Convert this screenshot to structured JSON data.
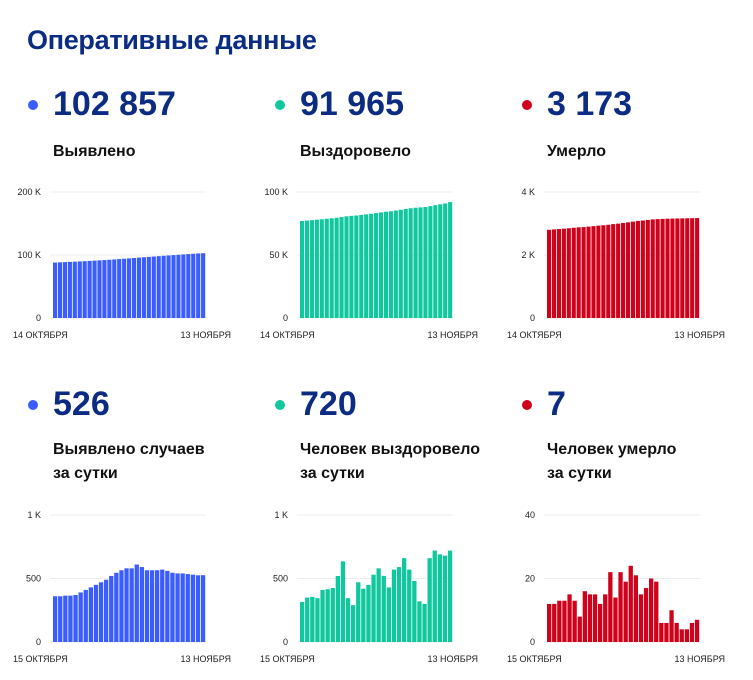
{
  "title": "Оперативные данные",
  "colors": {
    "cases": "#3b5cff",
    "recovered": "#10c79e",
    "deaths": "#d0021b"
  },
  "stats": [
    {
      "value": "102 857",
      "label1": "Выявлено",
      "label2": "",
      "color": "#3b5cff"
    },
    {
      "value": "91 965",
      "label1": "Выздоровело",
      "label2": "",
      "color": "#10c79e"
    },
    {
      "value": "3 173",
      "label1": "Умерло",
      "label2": "",
      "color": "#d0021b"
    },
    {
      "value": "526",
      "label1": "Выявлено случаев",
      "label2": "за сутки",
      "color": "#3b5cff"
    },
    {
      "value": "720",
      "label1": "Человек выздоровело",
      "label2": "за сутки",
      "color": "#10c79e"
    },
    {
      "value": "7",
      "label1": "Человек умерло",
      "label2": "за сутки",
      "color": "#d0021b"
    }
  ],
  "chart_data": [
    {
      "type": "bar",
      "title": "Выявлено",
      "ylim": [
        0,
        200000
      ],
      "ticks": [
        {
          "v": 0,
          "label": "0"
        },
        {
          "v": 100000,
          "label": "100 K"
        },
        {
          "v": 200000,
          "label": "200 K"
        }
      ],
      "xstart": "14 ОКТЯБРЯ",
      "xend": "13 НОЯБРЯ",
      "color": "#3b5cff",
      "values": [
        88000,
        88360,
        88720,
        89085,
        89450,
        89820,
        90210,
        90620,
        91050,
        91500,
        91970,
        92460,
        92980,
        93525,
        94090,
        94670,
        95250,
        95860,
        96450,
        97015,
        97580,
        98145,
        98715,
        99275,
        99820,
        100360,
        100900,
        101435,
        101965,
        102490,
        102857
      ]
    },
    {
      "type": "bar",
      "title": "Выздоровело",
      "ylim": [
        0,
        100000
      ],
      "ticks": [
        {
          "v": 0,
          "label": "0"
        },
        {
          "v": 50000,
          "label": "50 K"
        },
        {
          "v": 100000,
          "label": "100 K"
        }
      ],
      "xstart": "14 ОКТЯБРЯ",
      "xend": "13 НОЯБРЯ",
      "color": "#10c79e",
      "values": [
        77000,
        77300,
        77650,
        78000,
        78350,
        78750,
        79150,
        79550,
        80100,
        80700,
        81050,
        81350,
        81800,
        82250,
        82700,
        83250,
        83800,
        84300,
        84700,
        85300,
        85900,
        86550,
        87100,
        87500,
        87800,
        88100,
        88800,
        89500,
        90200,
        90900,
        91965
      ]
    },
    {
      "type": "bar",
      "title": "Умерло",
      "ylim": [
        0,
        4000
      ],
      "ticks": [
        {
          "v": 0,
          "label": "0"
        },
        {
          "v": 2000,
          "label": "2 K"
        },
        {
          "v": 4000,
          "label": "4 K"
        }
      ],
      "xstart": "14 ОКТЯБРЯ",
      "xend": "13 НОЯБРЯ",
      "color": "#d0021b",
      "values": [
        2800,
        2812,
        2824,
        2837,
        2850,
        2865,
        2878,
        2886,
        2902,
        2917,
        2932,
        2944,
        2959,
        2981,
        2995,
        3017,
        3036,
        3060,
        3081,
        3096,
        3113,
        3130,
        3140,
        3146,
        3152,
        3156,
        3160,
        3163,
        3166,
        3169,
        3173
      ]
    },
    {
      "type": "bar",
      "title": "Выявлено случаев за сутки",
      "ylim": [
        0,
        1000
      ],
      "ticks": [
        {
          "v": 0,
          "label": "0"
        },
        {
          "v": 500,
          "label": "500"
        },
        {
          "v": 1000,
          "label": "1 K"
        }
      ],
      "xstart": "15 ОКТЯБРЯ",
      "xend": "13 НОЯБРЯ",
      "color": "#3b5cff",
      "values": [
        360,
        360,
        365,
        365,
        370,
        390,
        410,
        430,
        450,
        470,
        490,
        520,
        545,
        565,
        580,
        580,
        610,
        590,
        565,
        565,
        565,
        570,
        560,
        545,
        540,
        540,
        535,
        530,
        525,
        526
      ]
    },
    {
      "type": "bar",
      "title": "Человек выздоровело за сутки",
      "ylim": [
        0,
        1000
      ],
      "ticks": [
        {
          "v": 0,
          "label": "0"
        },
        {
          "v": 500,
          "label": "500"
        },
        {
          "v": 1000,
          "label": "1 K"
        }
      ],
      "xstart": "15 ОКТЯБРЯ",
      "xend": "13 НОЯБРЯ",
      "color": "#10c79e",
      "values": [
        315,
        350,
        355,
        345,
        410,
        415,
        425,
        520,
        635,
        345,
        290,
        470,
        420,
        450,
        530,
        580,
        520,
        430,
        570,
        590,
        660,
        570,
        480,
        320,
        300,
        660,
        720,
        690,
        680,
        720
      ]
    },
    {
      "type": "bar",
      "title": "Человек умерло за сутки",
      "ylim": [
        0,
        40
      ],
      "ticks": [
        {
          "v": 0,
          "label": "0"
        },
        {
          "v": 20,
          "label": "20"
        },
        {
          "v": 40,
          "label": "40"
        }
      ],
      "xstart": "15 ОКТЯБРЯ",
      "xend": "13 НОЯБРЯ",
      "color": "#d0021b",
      "values": [
        12,
        12,
        13,
        13,
        15,
        13,
        8,
        16,
        15,
        15,
        12,
        15,
        22,
        14,
        22,
        19,
        24,
        21,
        15,
        17,
        20,
        19,
        6,
        6,
        10,
        6,
        4,
        4,
        6,
        7
      ]
    }
  ]
}
